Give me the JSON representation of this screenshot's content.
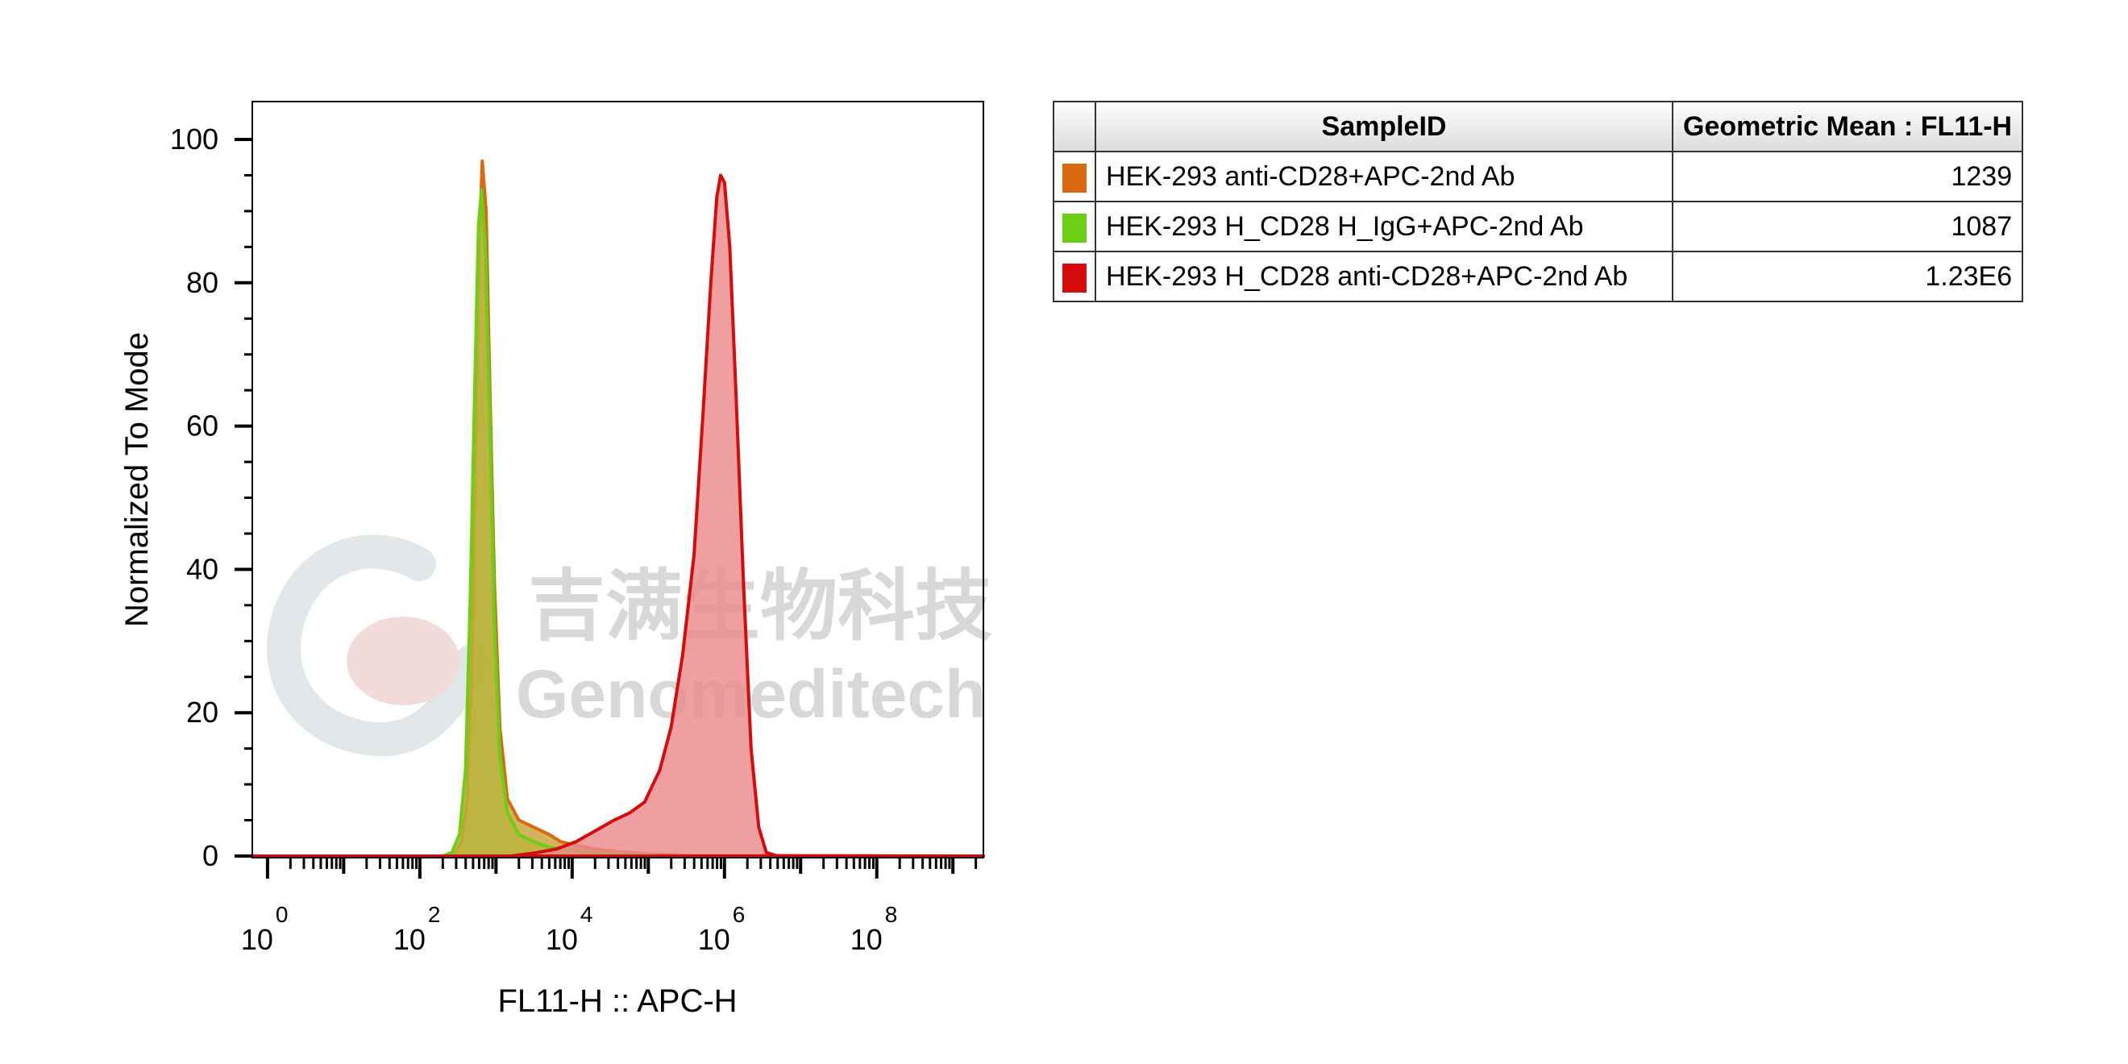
{
  "chart_data": {
    "type": "area",
    "title": "",
    "xlabel": "FL11-H :: APC-H",
    "ylabel": "Normalized To Mode",
    "xscale": "log",
    "xlim_log10": [
      -0.2,
      9.4
    ],
    "ylim": [
      0,
      105
    ],
    "x_ticks": [
      {
        "base": "10",
        "exp": "0",
        "log10": 0
      },
      {
        "base": "10",
        "exp": "2",
        "log10": 2
      },
      {
        "base": "10",
        "exp": "4",
        "log10": 4
      },
      {
        "base": "10",
        "exp": "6",
        "log10": 6
      },
      {
        "base": "10",
        "exp": "8",
        "log10": 8
      }
    ],
    "y_ticks": [
      "0",
      "20",
      "40",
      "60",
      "80",
      "100"
    ],
    "grid": false,
    "series": [
      {
        "name": "HEK-293 anti-CD28+APC-2nd Ab",
        "stroke": "#d96a0f",
        "fill": "#c9a23a",
        "points": [
          [
            -0.2,
            0
          ],
          [
            2.35,
            0
          ],
          [
            2.45,
            0.3
          ],
          [
            2.55,
            2
          ],
          [
            2.62,
            8
          ],
          [
            2.68,
            25
          ],
          [
            2.73,
            55
          ],
          [
            2.78,
            85
          ],
          [
            2.82,
            97
          ],
          [
            2.87,
            90
          ],
          [
            2.92,
            65
          ],
          [
            2.98,
            38
          ],
          [
            3.05,
            18
          ],
          [
            3.15,
            8
          ],
          [
            3.3,
            5
          ],
          [
            3.5,
            4
          ],
          [
            3.7,
            3
          ],
          [
            3.85,
            2
          ],
          [
            4.05,
            1.5
          ],
          [
            4.3,
            1
          ],
          [
            4.6,
            0.6
          ],
          [
            5.0,
            0.3
          ],
          [
            5.5,
            0.1
          ],
          [
            9.4,
            0
          ]
        ]
      },
      {
        "name": "HEK-293 H_CD28 H_IgG+APC-2nd Ab",
        "stroke": "#6ccf14",
        "fill": "#b9b43a",
        "points": [
          [
            -0.2,
            0
          ],
          [
            2.3,
            0
          ],
          [
            2.42,
            0.5
          ],
          [
            2.52,
            3
          ],
          [
            2.6,
            12
          ],
          [
            2.66,
            35
          ],
          [
            2.72,
            65
          ],
          [
            2.77,
            88
          ],
          [
            2.81,
            93
          ],
          [
            2.86,
            85
          ],
          [
            2.92,
            60
          ],
          [
            2.98,
            32
          ],
          [
            3.05,
            14
          ],
          [
            3.15,
            6
          ],
          [
            3.3,
            3
          ],
          [
            3.5,
            2
          ],
          [
            3.7,
            1.2
          ],
          [
            4.0,
            0.8
          ],
          [
            4.3,
            0.5
          ],
          [
            4.7,
            0.2
          ],
          [
            5.2,
            0
          ],
          [
            9.4,
            0
          ]
        ]
      },
      {
        "name": "HEK-293 H_CD28 anti-CD28+APC-2nd Ab",
        "stroke": "#d60b0b",
        "fill": "#eb8a8a",
        "points": [
          [
            -0.2,
            0
          ],
          [
            3.2,
            0
          ],
          [
            3.5,
            0.4
          ],
          [
            3.8,
            1
          ],
          [
            4.05,
            2
          ],
          [
            4.3,
            3.5
          ],
          [
            4.55,
            5
          ],
          [
            4.75,
            6
          ],
          [
            4.95,
            7.5
          ],
          [
            5.15,
            12
          ],
          [
            5.3,
            18
          ],
          [
            5.45,
            28
          ],
          [
            5.6,
            42
          ],
          [
            5.72,
            62
          ],
          [
            5.82,
            80
          ],
          [
            5.9,
            92
          ],
          [
            5.95,
            95
          ],
          [
            6.0,
            94
          ],
          [
            6.07,
            85
          ],
          [
            6.15,
            65
          ],
          [
            6.25,
            38
          ],
          [
            6.35,
            15
          ],
          [
            6.45,
            4
          ],
          [
            6.55,
            0.5
          ],
          [
            6.7,
            0
          ],
          [
            9.4,
            0
          ]
        ]
      }
    ]
  },
  "legend": {
    "header_sample": "SampleID",
    "header_mean": "Geometric Mean : FL11-H",
    "rows": [
      {
        "color": "#d96a0f",
        "sample": "HEK-293 anti-CD28+APC-2nd Ab",
        "mean": "1239"
      },
      {
        "color": "#6ccf14",
        "sample": "HEK-293 H_CD28 H_IgG+APC-2nd Ab",
        "mean": "1087"
      },
      {
        "color": "#d60b0b",
        "sample": "HEK-293 H_CD28 anti-CD28+APC-2nd Ab",
        "mean": "1.23E6"
      }
    ]
  },
  "watermark": {
    "chinese": "吉满生物科技",
    "english": "Genomeditech"
  }
}
